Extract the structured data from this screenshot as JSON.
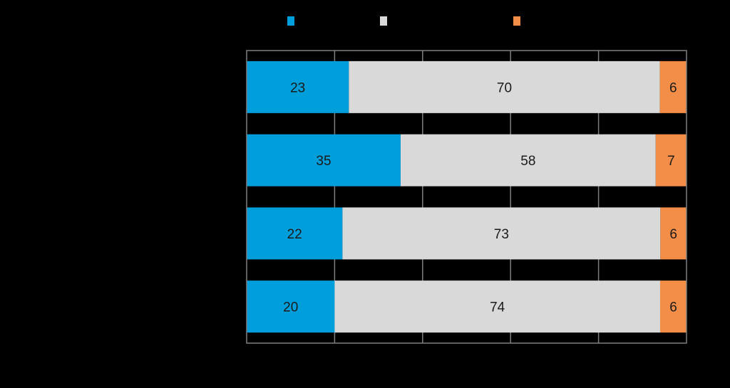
{
  "chart_data": {
    "type": "bar",
    "orientation": "horizontal",
    "stacked": true,
    "categories": [
      "",
      "",
      "",
      ""
    ],
    "series": [
      {
        "values": [
          23,
          35,
          22,
          20
        ],
        "color": "#009FDB"
      },
      {
        "values": [
          70,
          58,
          73,
          74
        ],
        "color": "#D9D9D9"
      },
      {
        "values": [
          6,
          7,
          6,
          6
        ],
        "color": "#F28E47"
      }
    ],
    "xlim": [
      0,
      100
    ],
    "grid": true,
    "legend_position": "top"
  }
}
